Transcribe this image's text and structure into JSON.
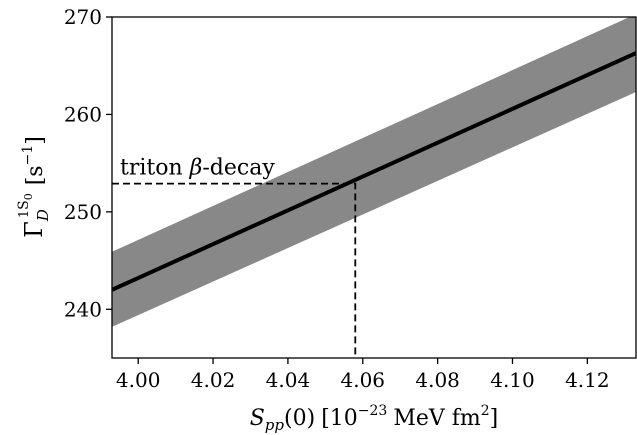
{
  "chart_data": {
    "type": "line",
    "title": "",
    "xlabel": {
      "symbol": "S",
      "subscript": "pp",
      "argument": "(0)",
      "unit_open": "[10",
      "unit_exponent": "−23",
      "unit_mid": "MeV fm",
      "unit_exponent2": "2",
      "unit_close": "]"
    },
    "ylabel": {
      "symbol": "Γ",
      "subscript": "D",
      "superscript_num": "1",
      "superscript_letter": "S",
      "superscript_sub": "0",
      "unit_open": "[s",
      "unit_exponent": "−1",
      "unit_close": "]"
    },
    "xlim": [
      3.993,
      4.133
    ],
    "ylim": [
      235.0,
      270.0
    ],
    "xticks": [
      4.0,
      4.02,
      4.04,
      4.06,
      4.08,
      4.1,
      4.12
    ],
    "xtick_labels": [
      "4.00",
      "4.02",
      "4.04",
      "4.06",
      "4.08",
      "4.10",
      "4.12"
    ],
    "yticks": [
      240,
      250,
      260,
      270
    ],
    "ytick_labels": [
      "240",
      "250",
      "260",
      "270"
    ],
    "grid": false,
    "series": [
      {
        "kind": "central-line",
        "color": "#000000",
        "x": [
          3.993,
          4.133
        ],
        "y": [
          242.0,
          266.3
        ]
      },
      {
        "kind": "uncertainty-band",
        "color": "#888888",
        "x": [
          3.993,
          4.133
        ],
        "y_low": [
          238.2,
          262.3
        ],
        "y_high": [
          245.9,
          270.3
        ]
      }
    ],
    "annotations": [
      {
        "text": "triton β-decay",
        "text_prefix": "triton ",
        "text_symbol": "β",
        "text_suffix": "-decay",
        "x": 4.058,
        "y": 252.9,
        "style": "dashed-crosshair",
        "color": "#000000"
      }
    ]
  }
}
